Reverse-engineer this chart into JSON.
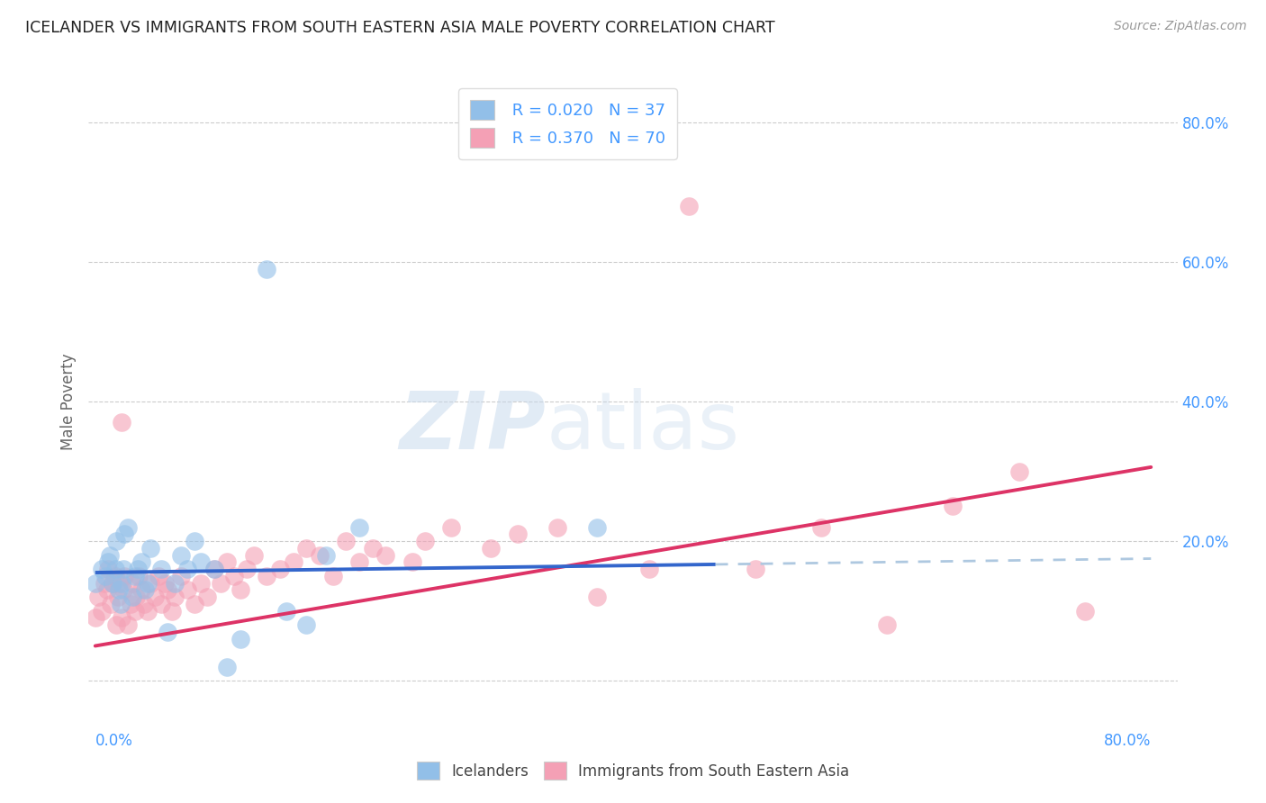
{
  "title": "ICELANDER VS IMMIGRANTS FROM SOUTH EASTERN ASIA MALE POVERTY CORRELATION CHART",
  "source": "Source: ZipAtlas.com",
  "ylabel": "Male Poverty",
  "ytick_vals": [
    0.0,
    0.2,
    0.4,
    0.6,
    0.8
  ],
  "ytick_labels": [
    "",
    "20.0%",
    "40.0%",
    "60.0%",
    "80.0%"
  ],
  "xlim": [
    -0.005,
    0.82
  ],
  "ylim": [
    -0.06,
    0.86
  ],
  "watermark_zip": "ZIP",
  "watermark_atlas": "atlas",
  "legend_r1": "R = 0.020",
  "legend_n1": "N = 37",
  "legend_r2": "R = 0.370",
  "legend_n2": "N = 70",
  "color_blue": "#92bfe8",
  "color_blue_line": "#3366cc",
  "color_blue_line_dashed": "#aec8e0",
  "color_pink": "#f4a0b5",
  "color_pink_line": "#dd3366",
  "color_blue_text": "#4499ff",
  "background": "#ffffff",
  "grid_color": "#cccccc",
  "blue_trend_x_end": 0.47,
  "blue_line_intercept": 0.155,
  "blue_line_slope": 0.025,
  "pink_line_intercept": 0.05,
  "pink_line_slope": 0.32,
  "icelanders_x": [
    0.0,
    0.005,
    0.008,
    0.01,
    0.011,
    0.013,
    0.015,
    0.016,
    0.018,
    0.019,
    0.02,
    0.021,
    0.022,
    0.025,
    0.028,
    0.03,
    0.032,
    0.035,
    0.038,
    0.04,
    0.042,
    0.05,
    0.055,
    0.06,
    0.065,
    0.07,
    0.075,
    0.08,
    0.09,
    0.1,
    0.11,
    0.13,
    0.145,
    0.16,
    0.175,
    0.2,
    0.38
  ],
  "icelanders_y": [
    0.14,
    0.16,
    0.15,
    0.17,
    0.18,
    0.14,
    0.16,
    0.2,
    0.13,
    0.11,
    0.14,
    0.16,
    0.21,
    0.22,
    0.12,
    0.15,
    0.16,
    0.17,
    0.13,
    0.14,
    0.19,
    0.16,
    0.07,
    0.14,
    0.18,
    0.16,
    0.2,
    0.17,
    0.16,
    0.02,
    0.06,
    0.59,
    0.1,
    0.08,
    0.18,
    0.22,
    0.22
  ],
  "sea_x": [
    0.0,
    0.002,
    0.005,
    0.007,
    0.009,
    0.01,
    0.012,
    0.013,
    0.015,
    0.016,
    0.017,
    0.018,
    0.02,
    0.021,
    0.022,
    0.025,
    0.027,
    0.028,
    0.03,
    0.031,
    0.033,
    0.035,
    0.037,
    0.04,
    0.042,
    0.045,
    0.048,
    0.05,
    0.053,
    0.055,
    0.058,
    0.06,
    0.065,
    0.07,
    0.075,
    0.08,
    0.085,
    0.09,
    0.095,
    0.1,
    0.105,
    0.11,
    0.115,
    0.12,
    0.13,
    0.14,
    0.15,
    0.16,
    0.17,
    0.18,
    0.19,
    0.2,
    0.21,
    0.22,
    0.24,
    0.25,
    0.27,
    0.3,
    0.32,
    0.35,
    0.38,
    0.42,
    0.45,
    0.5,
    0.55,
    0.6,
    0.65,
    0.7,
    0.75,
    0.02
  ],
  "sea_y": [
    0.09,
    0.12,
    0.1,
    0.14,
    0.13,
    0.16,
    0.11,
    0.14,
    0.15,
    0.08,
    0.12,
    0.14,
    0.09,
    0.13,
    0.15,
    0.08,
    0.11,
    0.14,
    0.1,
    0.12,
    0.15,
    0.13,
    0.11,
    0.1,
    0.14,
    0.12,
    0.15,
    0.11,
    0.14,
    0.13,
    0.1,
    0.12,
    0.15,
    0.13,
    0.11,
    0.14,
    0.12,
    0.16,
    0.14,
    0.17,
    0.15,
    0.13,
    0.16,
    0.18,
    0.15,
    0.16,
    0.17,
    0.19,
    0.18,
    0.15,
    0.2,
    0.17,
    0.19,
    0.18,
    0.17,
    0.2,
    0.22,
    0.19,
    0.21,
    0.22,
    0.12,
    0.16,
    0.68,
    0.16,
    0.22,
    0.08,
    0.25,
    0.3,
    0.1,
    0.37
  ]
}
